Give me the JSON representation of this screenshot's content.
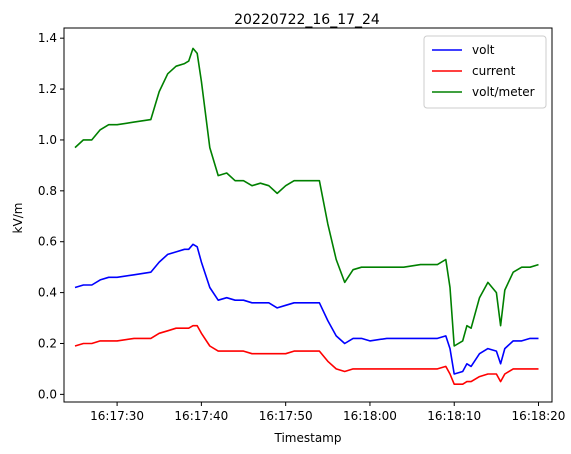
{
  "chart_data": {
    "type": "line",
    "title": "20220722_16_17_24",
    "xlabel": "Timestamp",
    "ylabel": "kV/m",
    "ylim": [
      -0.03,
      1.44
    ],
    "xlim_seconds_rel": [
      -1.3,
      56.6
    ],
    "x_ticks": [
      "16:17:30",
      "16:17:40",
      "16:17:50",
      "16:18:00",
      "16:18:10",
      "16:18:20"
    ],
    "y_ticks": [
      "0.0",
      "0.2",
      "0.4",
      "0.6",
      "0.8",
      "1.0",
      "1.2",
      "1.4"
    ],
    "y_tick_values": [
      0.0,
      0.2,
      0.4,
      0.6,
      0.8,
      1.0,
      1.2,
      1.4
    ],
    "legend_position": "top-right",
    "grid": false,
    "x_times": [
      "16:17:25",
      "16:17:26",
      "16:17:27",
      "16:17:28",
      "16:17:29",
      "16:17:30",
      "16:17:32",
      "16:17:34",
      "16:17:35",
      "16:17:36",
      "16:17:37",
      "16:17:38",
      "16:17:38.5",
      "16:17:39",
      "16:17:39.5",
      "16:17:40",
      "16:17:41",
      "16:17:42",
      "16:17:43",
      "16:17:44",
      "16:17:45",
      "16:17:46",
      "16:17:47",
      "16:17:48",
      "16:17:49",
      "16:17:50",
      "16:17:51",
      "16:17:52",
      "16:17:53",
      "16:17:54",
      "16:17:55",
      "16:17:56",
      "16:17:57",
      "16:17:58",
      "16:17:59",
      "16:18:00",
      "16:18:02",
      "16:18:04",
      "16:18:06",
      "16:18:08",
      "16:18:09",
      "16:18:09.5",
      "16:18:10",
      "16:18:11",
      "16:18:11.5",
      "16:18:12",
      "16:18:13",
      "16:18:14",
      "16:18:15",
      "16:18:15.5",
      "16:18:16",
      "16:18:17",
      "16:18:18",
      "16:18:19",
      "16:18:20"
    ],
    "series": [
      {
        "name": "volt",
        "color": "#0000ff",
        "values": [
          0.42,
          0.43,
          0.43,
          0.45,
          0.46,
          0.46,
          0.47,
          0.48,
          0.52,
          0.55,
          0.56,
          0.57,
          0.57,
          0.59,
          0.58,
          0.52,
          0.42,
          0.37,
          0.38,
          0.37,
          0.37,
          0.36,
          0.36,
          0.36,
          0.34,
          0.35,
          0.36,
          0.36,
          0.36,
          0.36,
          0.29,
          0.23,
          0.2,
          0.22,
          0.22,
          0.21,
          0.22,
          0.22,
          0.22,
          0.22,
          0.23,
          0.18,
          0.08,
          0.09,
          0.12,
          0.11,
          0.16,
          0.18,
          0.17,
          0.12,
          0.18,
          0.21,
          0.21,
          0.22,
          0.22
        ]
      },
      {
        "name": "current",
        "color": "#ff0000",
        "values": [
          0.19,
          0.2,
          0.2,
          0.21,
          0.21,
          0.21,
          0.22,
          0.22,
          0.24,
          0.25,
          0.26,
          0.26,
          0.26,
          0.27,
          0.27,
          0.24,
          0.19,
          0.17,
          0.17,
          0.17,
          0.17,
          0.16,
          0.16,
          0.16,
          0.16,
          0.16,
          0.17,
          0.17,
          0.17,
          0.17,
          0.13,
          0.1,
          0.09,
          0.1,
          0.1,
          0.1,
          0.1,
          0.1,
          0.1,
          0.1,
          0.11,
          0.08,
          0.04,
          0.04,
          0.05,
          0.05,
          0.07,
          0.08,
          0.08,
          0.05,
          0.08,
          0.1,
          0.1,
          0.1,
          0.1
        ]
      },
      {
        "name": "volt/meter",
        "color": "#008000",
        "values": [
          0.97,
          1.0,
          1.0,
          1.04,
          1.06,
          1.06,
          1.07,
          1.08,
          1.19,
          1.26,
          1.29,
          1.3,
          1.31,
          1.36,
          1.34,
          1.23,
          0.97,
          0.86,
          0.87,
          0.84,
          0.84,
          0.82,
          0.83,
          0.82,
          0.79,
          0.82,
          0.84,
          0.84,
          0.84,
          0.84,
          0.67,
          0.53,
          0.44,
          0.49,
          0.5,
          0.5,
          0.5,
          0.5,
          0.51,
          0.51,
          0.53,
          0.42,
          0.19,
          0.21,
          0.27,
          0.26,
          0.38,
          0.44,
          0.4,
          0.27,
          0.41,
          0.48,
          0.5,
          0.5,
          0.51
        ]
      }
    ]
  }
}
